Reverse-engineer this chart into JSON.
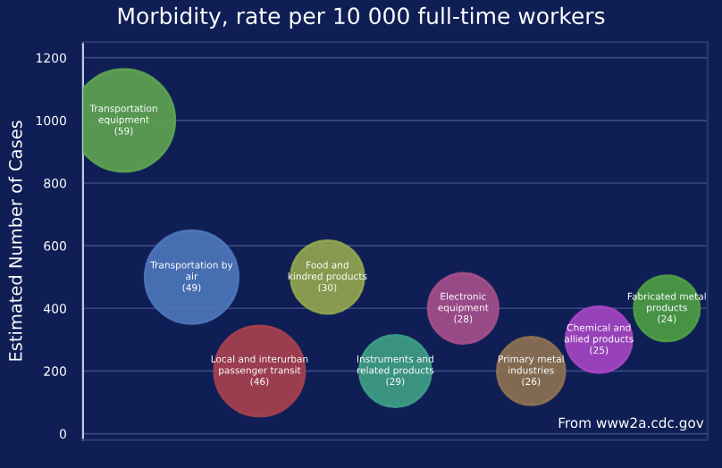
{
  "chart_data": {
    "type": "bubble",
    "title": "Morbidity, rate per 10 000 full-time workers",
    "ylabel": "Estimated Number of Cases",
    "categories": [
      null,
      null,
      null,
      null,
      null,
      null,
      null,
      null,
      null
    ],
    "ylim": [
      -20,
      1250
    ],
    "yticks": [
      0,
      200,
      400,
      600,
      800,
      1000,
      1200
    ],
    "grid": "y",
    "series": [
      {
        "name": "Transportation equipment (59)",
        "color": "#5fa452",
        "values": [
          1000,
          null,
          null,
          null,
          null,
          null,
          null,
          null,
          null
        ],
        "sizes": [
          1,
          null,
          null,
          null,
          null,
          null,
          null,
          null,
          null
        ]
      },
      {
        "name": "Transportation by air (49)",
        "color": "#4f77bd",
        "values": [
          null,
          500,
          null,
          null,
          null,
          null,
          null,
          null,
          null
        ],
        "sizes": [
          null,
          0.83,
          null,
          null,
          null,
          null,
          null,
          null,
          null
        ]
      },
      {
        "name": "Local and interurban passenger transit (46)",
        "color": "#a8404f",
        "values": [
          null,
          null,
          200,
          null,
          null,
          null,
          null,
          null,
          null
        ],
        "sizes": [
          null,
          null,
          0.78,
          null,
          null,
          null,
          null,
          null,
          null
        ]
      },
      {
        "name": "Food and kindred products (30)",
        "color": "#93a64f",
        "values": [
          null,
          null,
          null,
          500,
          null,
          null,
          null,
          null,
          null
        ],
        "sizes": [
          null,
          null,
          null,
          0.51,
          null,
          null,
          null,
          null,
          null
        ]
      },
      {
        "name": "Instruments and related products (29)",
        "color": "#3f9e86",
        "values": [
          null,
          null,
          null,
          null,
          200,
          null,
          null,
          null,
          null
        ],
        "sizes": [
          null,
          null,
          null,
          null,
          0.49,
          null,
          null,
          null,
          null
        ]
      },
      {
        "name": "Electronic equipment (28)",
        "color": "#a64f8c",
        "values": [
          null,
          null,
          null,
          null,
          null,
          400,
          null,
          null,
          null
        ],
        "sizes": [
          null,
          null,
          null,
          null,
          null,
          0.47,
          null,
          null,
          null
        ]
      },
      {
        "name": "Primary metal industries (26)",
        "color": "#8f7252",
        "values": [
          null,
          null,
          null,
          null,
          null,
          null,
          200,
          null,
          null
        ],
        "sizes": [
          null,
          null,
          null,
          null,
          null,
          null,
          0.44,
          null,
          null
        ]
      },
      {
        "name": "Chemical and allied products (25)",
        "color": "#a646c4",
        "values": [
          null,
          null,
          null,
          null,
          null,
          null,
          null,
          300,
          null
        ],
        "sizes": [
          null,
          null,
          null,
          null,
          null,
          null,
          null,
          0.42,
          null
        ]
      },
      {
        "name": "Fabricated metal products (24)",
        "color": "#4f9e45",
        "values": [
          null,
          null,
          null,
          null,
          null,
          null,
          null,
          null,
          400
        ],
        "sizes": [
          null,
          null,
          null,
          null,
          null,
          null,
          null,
          null,
          0.41
        ]
      }
    ],
    "annotations": [
      "From www2a.cdc.gov"
    ]
  }
}
